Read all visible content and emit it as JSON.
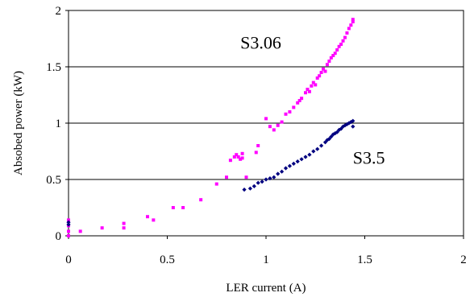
{
  "chart_data": {
    "type": "scatter",
    "title": "",
    "xlabel": "LER current (A)",
    "ylabel": "Absobed power (kW)",
    "xlim": [
      0,
      2
    ],
    "ylim": [
      0,
      2
    ],
    "xticks": [
      "0",
      "0.5",
      "1",
      "1.5",
      "2"
    ],
    "yticks": [
      "0",
      "0.5",
      "1",
      "1.5",
      "2"
    ],
    "grid": "horizontal",
    "legend": "none",
    "annotations": [
      {
        "text": "S3.06",
        "x": 0.87,
        "y": 1.66
      },
      {
        "text": "S3.5",
        "x": 1.44,
        "y": 0.64
      }
    ],
    "series": [
      {
        "color": "#FF00FF",
        "marker": "square",
        "points": [
          [
            0.0,
            0.0
          ],
          [
            0.0,
            0.04
          ],
          [
            0.0,
            0.09
          ],
          [
            0.0,
            0.14
          ],
          [
            0.06,
            0.04
          ],
          [
            0.17,
            0.07
          ],
          [
            0.28,
            0.07
          ],
          [
            0.28,
            0.11
          ],
          [
            0.4,
            0.17
          ],
          [
            0.43,
            0.14
          ],
          [
            0.53,
            0.25
          ],
          [
            0.58,
            0.25
          ],
          [
            0.67,
            0.32
          ],
          [
            0.75,
            0.46
          ],
          [
            0.8,
            0.52
          ],
          [
            0.82,
            0.67
          ],
          [
            0.84,
            0.7
          ],
          [
            0.85,
            0.72
          ],
          [
            0.86,
            0.7
          ],
          [
            0.87,
            0.68
          ],
          [
            0.88,
            0.73
          ],
          [
            0.88,
            0.69
          ],
          [
            0.9,
            0.52
          ],
          [
            0.95,
            0.74
          ],
          [
            0.96,
            0.8
          ],
          [
            1.0,
            1.04
          ],
          [
            1.02,
            0.97
          ],
          [
            1.04,
            0.94
          ],
          [
            1.06,
            0.98
          ],
          [
            1.08,
            1.01
          ],
          [
            1.1,
            1.08
          ],
          [
            1.12,
            1.1
          ],
          [
            1.14,
            1.14
          ],
          [
            1.16,
            1.18
          ],
          [
            1.17,
            1.2
          ],
          [
            1.18,
            1.22
          ],
          [
            1.2,
            1.27
          ],
          [
            1.21,
            1.3
          ],
          [
            1.22,
            1.28
          ],
          [
            1.23,
            1.33
          ],
          [
            1.24,
            1.36
          ],
          [
            1.25,
            1.34
          ],
          [
            1.26,
            1.4
          ],
          [
            1.27,
            1.42
          ],
          [
            1.28,
            1.45
          ],
          [
            1.29,
            1.48
          ],
          [
            1.3,
            1.46
          ],
          [
            1.31,
            1.52
          ],
          [
            1.32,
            1.55
          ],
          [
            1.33,
            1.58
          ],
          [
            1.34,
            1.6
          ],
          [
            1.35,
            1.62
          ],
          [
            1.36,
            1.65
          ],
          [
            1.37,
            1.68
          ],
          [
            1.38,
            1.7
          ],
          [
            1.39,
            1.73
          ],
          [
            1.4,
            1.76
          ],
          [
            1.41,
            1.8
          ],
          [
            1.42,
            1.84
          ],
          [
            1.43,
            1.87
          ],
          [
            1.44,
            1.9
          ],
          [
            1.44,
            1.92
          ]
        ]
      },
      {
        "color": "#000080",
        "marker": "diamond",
        "points": [
          [
            0.0,
            0.1
          ],
          [
            0.0,
            0.12
          ],
          [
            0.89,
            0.41
          ],
          [
            0.92,
            0.42
          ],
          [
            0.94,
            0.44
          ],
          [
            0.96,
            0.47
          ],
          [
            0.98,
            0.48
          ],
          [
            1.0,
            0.5
          ],
          [
            1.02,
            0.51
          ],
          [
            1.04,
            0.52
          ],
          [
            1.06,
            0.55
          ],
          [
            1.08,
            0.57
          ],
          [
            1.1,
            0.6
          ],
          [
            1.12,
            0.62
          ],
          [
            1.14,
            0.64
          ],
          [
            1.16,
            0.66
          ],
          [
            1.18,
            0.68
          ],
          [
            1.2,
            0.7
          ],
          [
            1.22,
            0.72
          ],
          [
            1.24,
            0.75
          ],
          [
            1.26,
            0.77
          ],
          [
            1.28,
            0.8
          ],
          [
            1.3,
            0.83
          ],
          [
            1.31,
            0.85
          ],
          [
            1.32,
            0.86
          ],
          [
            1.33,
            0.88
          ],
          [
            1.34,
            0.9
          ],
          [
            1.35,
            0.91
          ],
          [
            1.36,
            0.92
          ],
          [
            1.37,
            0.94
          ],
          [
            1.38,
            0.95
          ],
          [
            1.39,
            0.97
          ],
          [
            1.4,
            0.98
          ],
          [
            1.41,
            0.99
          ],
          [
            1.42,
            1.0
          ],
          [
            1.43,
            1.01
          ],
          [
            1.44,
            1.02
          ],
          [
            1.44,
            0.97
          ]
        ]
      }
    ]
  }
}
